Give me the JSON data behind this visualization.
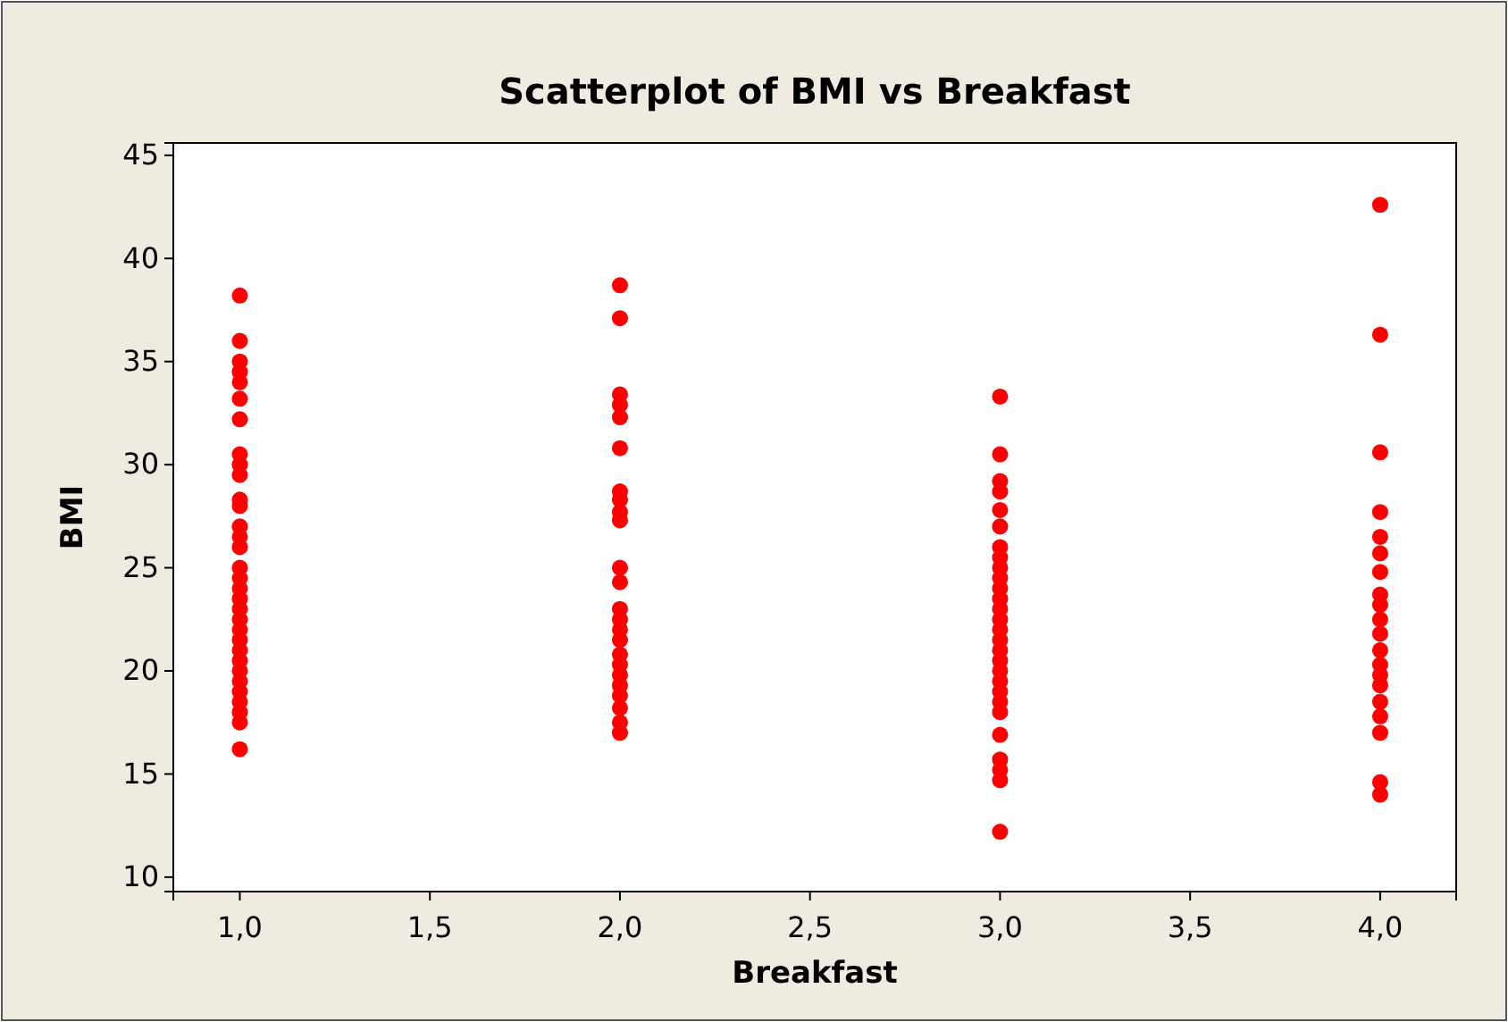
{
  "chart_data": {
    "type": "scatter",
    "title": "Scatterplot of BMI vs Breakfast",
    "xlabel": "Breakfast",
    "ylabel": "BMI",
    "series": [
      {
        "color": "#ff0000",
        "x": [
          1,
          1,
          1,
          1,
          1,
          1,
          1,
          1,
          1,
          1,
          1,
          1,
          1,
          1,
          1,
          1,
          1,
          1,
          1,
          1,
          1,
          1,
          1,
          1,
          1,
          1,
          1,
          1,
          1,
          1,
          1,
          1,
          2,
          2,
          2,
          2,
          2,
          2,
          2,
          2,
          2,
          2,
          2,
          2,
          2,
          2,
          2,
          2,
          2,
          2,
          2,
          2,
          2,
          2,
          2,
          2,
          3,
          3,
          3,
          3,
          3,
          3,
          3,
          3,
          3,
          3,
          3,
          3,
          3,
          3,
          3,
          3,
          3,
          3,
          3,
          3,
          3,
          3,
          3,
          3,
          3,
          3,
          3,
          3,
          4,
          4,
          4,
          4,
          4,
          4,
          4,
          4,
          4,
          4,
          4,
          4,
          4,
          4,
          4,
          4,
          4,
          4,
          4,
          4
        ],
        "values": [
          38.2,
          36,
          35,
          34.5,
          34,
          33.2,
          32.2,
          30.5,
          30,
          29.5,
          28.3,
          28,
          27,
          26.5,
          26,
          25,
          24.5,
          24,
          23.5,
          23,
          22.5,
          22,
          21.5,
          21,
          20.5,
          20,
          19.5,
          19,
          18.5,
          18,
          17.5,
          16.2,
          38.7,
          37.1,
          33.4,
          32.9,
          32.3,
          30.8,
          28.7,
          28.3,
          27.7,
          27.3,
          25,
          24.3,
          23,
          22.5,
          22,
          21.5,
          20.8,
          20.3,
          19.8,
          19.3,
          18.8,
          18.2,
          17.5,
          17,
          33.3,
          30.5,
          29.2,
          28.7,
          27.8,
          27,
          26,
          25.5,
          25,
          24.5,
          24,
          23.5,
          23,
          22.5,
          22,
          21.5,
          21,
          20.5,
          20,
          19.5,
          19,
          18.5,
          18,
          16.9,
          15.7,
          15.2,
          14.7,
          12.2,
          42.6,
          36.3,
          30.6,
          27.7,
          26.5,
          25.7,
          24.8,
          23.7,
          23.2,
          22.5,
          21.8,
          21,
          20.3,
          19.8,
          19.3,
          18.5,
          17.8,
          17,
          14.6,
          14
        ]
      }
    ],
    "xlim": [
      0.825,
      4.2
    ],
    "xticks": [
      {
        "value": 1,
        "label": "1,0"
      },
      {
        "value": 1.5,
        "label": "1,5"
      },
      {
        "value": 2,
        "label": "2,0"
      },
      {
        "value": 2.5,
        "label": "2,5"
      },
      {
        "value": 3,
        "label": "3,0"
      },
      {
        "value": 3.5,
        "label": "3,5"
      },
      {
        "value": 4,
        "label": "4,0"
      }
    ],
    "ylim": [
      9.3,
      45.6
    ],
    "yticks": [
      10,
      15,
      20,
      25,
      30,
      35,
      40,
      45
    ],
    "grid": false,
    "marker": "circle"
  }
}
